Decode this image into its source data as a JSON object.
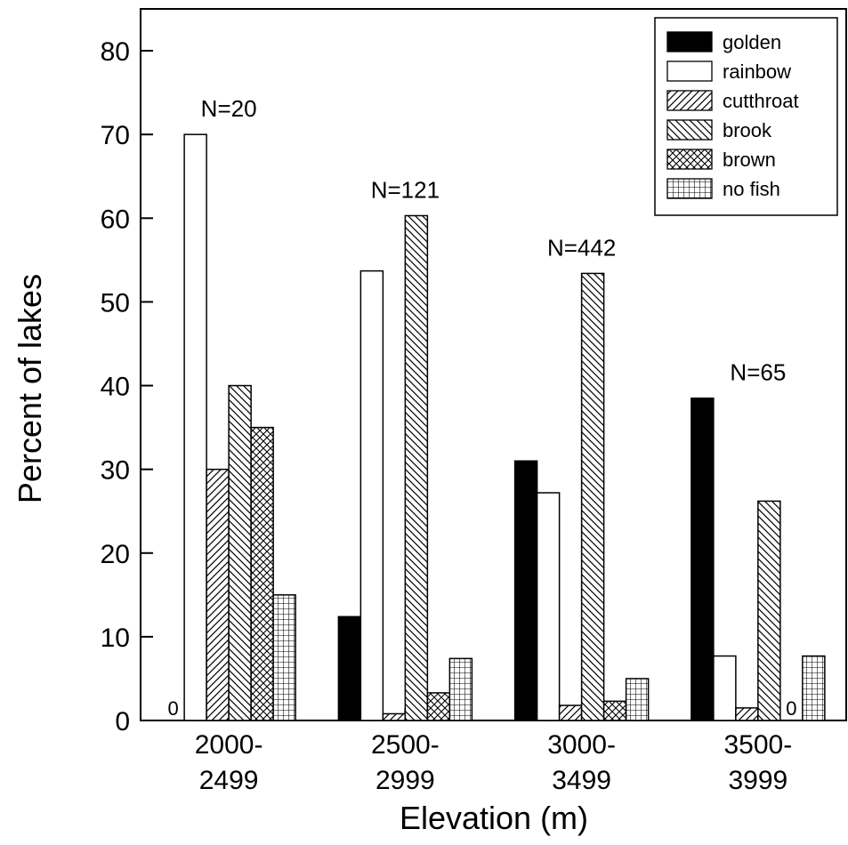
{
  "chart_data": {
    "type": "bar",
    "xlabel": "Elevation (m)",
    "ylabel": "Percent of lakes",
    "ylim": [
      0,
      85
    ],
    "yticks": [
      0,
      10,
      20,
      30,
      40,
      50,
      60,
      70,
      80
    ],
    "grid": false,
    "legend_position": "top-right",
    "categories": [
      {
        "line1": "2000-",
        "line2": "2499",
        "n_label": "N=20"
      },
      {
        "line1": "2500-",
        "line2": "2999",
        "n_label": "N=121"
      },
      {
        "line1": "3000-",
        "line2": "3499",
        "n_label": "N=442"
      },
      {
        "line1": "3500-",
        "line2": "3999",
        "n_label": "N=65"
      }
    ],
    "series": [
      {
        "name": "golden",
        "pattern": "solid-black",
        "values": [
          0,
          12.4,
          31,
          38.5
        ]
      },
      {
        "name": "rainbow",
        "pattern": "white",
        "values": [
          70,
          53.7,
          27.2,
          7.7
        ]
      },
      {
        "name": "cutthroat",
        "pattern": "diagonal-forward",
        "values": [
          30,
          0.8,
          1.8,
          1.5
        ]
      },
      {
        "name": "brook",
        "pattern": "diagonal-back",
        "values": [
          40,
          60.3,
          53.4,
          26.2
        ]
      },
      {
        "name": "brown",
        "pattern": "crosshatch",
        "values": [
          35,
          3.3,
          2.3,
          0
        ]
      },
      {
        "name": "no fish",
        "pattern": "grid",
        "values": [
          15,
          7.4,
          5,
          7.7
        ]
      }
    ],
    "zero_labels": [
      {
        "category": 0,
        "series": 0,
        "text": "0"
      },
      {
        "category": 3,
        "series": 4,
        "text": "0"
      }
    ]
  }
}
